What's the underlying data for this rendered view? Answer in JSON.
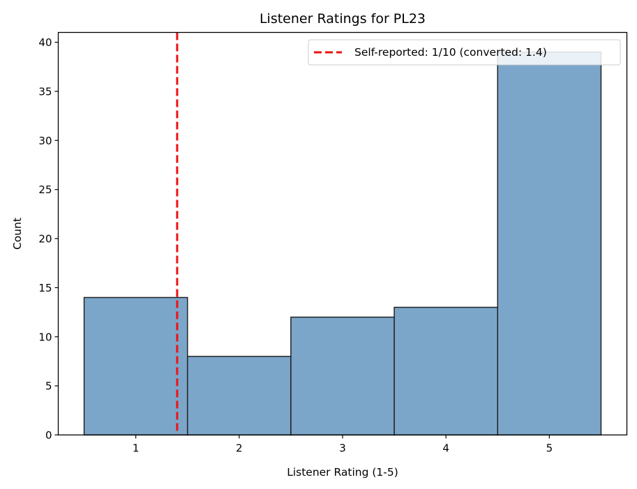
{
  "chart_data": {
    "type": "bar",
    "title": "Listener Ratings for PL23",
    "xlabel": "Listener Rating (1-5)",
    "ylabel": "Count",
    "categories": [
      "1",
      "2",
      "3",
      "4",
      "5"
    ],
    "bins": [
      {
        "start": 0.5,
        "end": 1.5,
        "value": 14
      },
      {
        "start": 1.5,
        "end": 2.5,
        "value": 8
      },
      {
        "start": 2.5,
        "end": 3.5,
        "value": 12
      },
      {
        "start": 3.5,
        "end": 4.5,
        "value": 13
      },
      {
        "start": 4.5,
        "end": 5.5,
        "value": 39
      }
    ],
    "xlim": [
      0.25,
      5.75
    ],
    "ylim": [
      0,
      41
    ],
    "x_ticks": [
      1,
      2,
      3,
      4,
      5
    ],
    "y_ticks": [
      0,
      5,
      10,
      15,
      20,
      25,
      30,
      35,
      40
    ],
    "reference_line": {
      "x": 1.4,
      "label": "Self-reported: 1/10 (converted: 1.4)",
      "style": "dashed"
    },
    "legend_position": "top-right",
    "grid": false,
    "colors": {
      "bar_fill": "#7ba6ca",
      "bar_edge": "#222222",
      "reference_line": "#ee1111"
    }
  }
}
